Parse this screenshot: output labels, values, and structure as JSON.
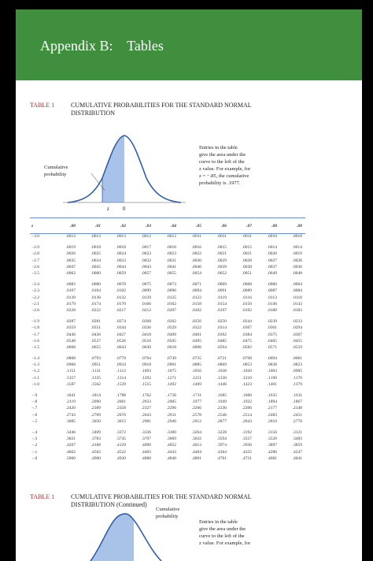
{
  "header": {
    "title": "Appendix B:    Tables"
  },
  "table1": {
    "label": "TABLE 1",
    "title_line1": "CUMULATIVE PROBABILITIES FOR THE STANDARD NORMAL",
    "title_line2": "DISTRIBUTION",
    "diagram": {
      "curve_label_line1": "Cumulative",
      "curve_label_line2": "probability",
      "z_label": "z",
      "zero_label": "0",
      "note_lines": [
        "Entries in the table",
        "give the area under the",
        "curve to the left of the",
        "z value. For example, for",
        "z = −.85, the cumulative",
        "probability is .1977."
      ]
    },
    "columns": [
      "z",
      ".00",
      ".01",
      ".02",
      ".03",
      ".04",
      ".05",
      ".06",
      ".07",
      ".08",
      ".09"
    ],
    "groups": [
      [
        [
          "−3.0",
          ".0013",
          ".0013",
          ".0013",
          ".0012",
          ".0012",
          ".0011",
          ".0011",
          ".0011",
          ".0010",
          ".0010"
        ]
      ],
      [
        [
          "−2.9",
          ".0019",
          ".0018",
          ".0018",
          ".0017",
          ".0016",
          ".0016",
          ".0015",
          ".0015",
          ".0014",
          ".0014"
        ],
        [
          "−2.8",
          ".0026",
          ".0025",
          ".0024",
          ".0023",
          ".0023",
          ".0022",
          ".0021",
          ".0021",
          ".0020",
          ".0019"
        ],
        [
          "−2.7",
          ".0035",
          ".0034",
          ".0033",
          ".0032",
          ".0031",
          ".0030",
          ".0029",
          ".0028",
          ".0027",
          ".0026"
        ],
        [
          "−2.6",
          ".0047",
          ".0045",
          ".0044",
          ".0043",
          ".0041",
          ".0040",
          ".0039",
          ".0038",
          ".0037",
          ".0036"
        ],
        [
          "−2.5",
          ".0062",
          ".0060",
          ".0059",
          ".0057",
          ".0055",
          ".0054",
          ".0052",
          ".0051",
          ".0049",
          ".0048"
        ]
      ],
      [
        [
          "−2.4",
          ".0082",
          ".0080",
          ".0078",
          ".0075",
          ".0073",
          ".0071",
          ".0069",
          ".0068",
          ".0066",
          ".0064"
        ],
        [
          "−2.3",
          ".0107",
          ".0104",
          ".0102",
          ".0099",
          ".0096",
          ".0094",
          ".0091",
          ".0089",
          ".0087",
          ".0084"
        ],
        [
          "−2.2",
          ".0139",
          ".0136",
          ".0132",
          ".0129",
          ".0125",
          ".0122",
          ".0119",
          ".0116",
          ".0113",
          ".0110"
        ],
        [
          "−2.1",
          ".0179",
          ".0174",
          ".0170",
          ".0166",
          ".0162",
          ".0158",
          ".0154",
          ".0150",
          ".0146",
          ".0143"
        ],
        [
          "−2.0",
          ".0228",
          ".0222",
          ".0217",
          ".0212",
          ".0207",
          ".0202",
          ".0197",
          ".0192",
          ".0188",
          ".0183"
        ]
      ],
      [
        [
          "−1.9",
          ".0287",
          ".0281",
          ".0274",
          ".0268",
          ".0262",
          ".0256",
          ".0250",
          ".0244",
          ".0239",
          ".0233"
        ],
        [
          "−1.8",
          ".0359",
          ".0351",
          ".0344",
          ".0336",
          ".0329",
          ".0322",
          ".0314",
          ".0307",
          ".0301",
          ".0294"
        ],
        [
          "−1.7",
          ".0446",
          ".0436",
          ".0427",
          ".0418",
          ".0409",
          ".0401",
          ".0392",
          ".0384",
          ".0375",
          ".0367"
        ],
        [
          "−1.6",
          ".0548",
          ".0537",
          ".0526",
          ".0516",
          ".0505",
          ".0495",
          ".0485",
          ".0475",
          ".0465",
          ".0455"
        ],
        [
          "−1.5",
          ".0668",
          ".0655",
          ".0643",
          ".0630",
          ".0618",
          ".0606",
          ".0594",
          ".0582",
          ".0571",
          ".0559"
        ]
      ],
      [
        [
          "−1.4",
          ".0808",
          ".0793",
          ".0778",
          ".0764",
          ".0749",
          ".0735",
          ".0721",
          ".0708",
          ".0694",
          ".0681"
        ],
        [
          "−1.3",
          ".0968",
          ".0951",
          ".0934",
          ".0918",
          ".0901",
          ".0885",
          ".0869",
          ".0853",
          ".0838",
          ".0823"
        ],
        [
          "−1.2",
          ".1151",
          ".1131",
          ".1112",
          ".1093",
          ".1075",
          ".1056",
          ".1038",
          ".1020",
          ".1003",
          ".0985"
        ],
        [
          "−1.1",
          ".1357",
          ".1335",
          ".1314",
          ".1292",
          ".1271",
          ".1251",
          ".1230",
          ".1210",
          ".1190",
          ".1170"
        ],
        [
          "−1.0",
          ".1587",
          ".1562",
          ".1539",
          ".1515",
          ".1492",
          ".1469",
          ".1446",
          ".1423",
          ".1401",
          ".1379"
        ]
      ],
      [
        [
          "−.9",
          ".1841",
          ".1814",
          ".1788",
          ".1762",
          ".1736",
          ".1711",
          ".1685",
          ".1660",
          ".1635",
          ".1611"
        ],
        [
          "−.8",
          ".2119",
          ".2090",
          ".2061",
          ".2033",
          ".2005",
          ".1977",
          ".1949",
          ".1922",
          ".1894",
          ".1867"
        ],
        [
          "−.7",
          ".2420",
          ".2389",
          ".2358",
          ".2327",
          ".2296",
          ".2266",
          ".2236",
          ".2206",
          ".2177",
          ".2148"
        ],
        [
          "−.6",
          ".2743",
          ".2709",
          ".2676",
          ".2643",
          ".2611",
          ".2578",
          ".2546",
          ".2514",
          ".2483",
          ".2451"
        ],
        [
          "−.5",
          ".3085",
          ".3050",
          ".3015",
          ".2981",
          ".2946",
          ".2912",
          ".2877",
          ".2843",
          ".2810",
          ".2776"
        ]
      ],
      [
        [
          "−.4",
          ".3446",
          ".3409",
          ".3372",
          ".3336",
          ".3300",
          ".3264",
          ".3228",
          ".3192",
          ".3156",
          ".3121"
        ],
        [
          "−.3",
          ".3821",
          ".3783",
          ".3745",
          ".3707",
          ".3669",
          ".3632",
          ".3594",
          ".3557",
          ".3520",
          ".3483"
        ],
        [
          "−.2",
          ".4207",
          ".4168",
          ".4129",
          ".4090",
          ".4052",
          ".4013",
          ".3974",
          ".3936",
          ".3897",
          ".3859"
        ],
        [
          "−.1",
          ".4602",
          ".4562",
          ".4522",
          ".4483",
          ".4443",
          ".4404",
          ".4364",
          ".4325",
          ".4286",
          ".4247"
        ],
        [
          "−.0",
          ".5000",
          ".4960",
          ".4920",
          ".4880",
          ".4840",
          ".4801",
          ".4761",
          ".4721",
          ".4681",
          ".4641"
        ]
      ]
    ]
  },
  "table1_continued": {
    "label": "TABLE 1",
    "title_line1": "CUMULATIVE PROBABILITIES FOR THE STANDARD NORMAL",
    "title_line2": "DISTRIBUTION (Continued)",
    "curve_label_line1": "Cumulative",
    "curve_label_line2": "probability",
    "note_lines": [
      "Entries in the table",
      "give the area under the",
      "curve to the left of the",
      "z value. For example, for"
    ]
  },
  "colors": {
    "header_green": "#3f8f3f",
    "curve_blue": "#2f5fb0",
    "shade_blue": "#a9c3e8",
    "label_red": "#b03030"
  }
}
